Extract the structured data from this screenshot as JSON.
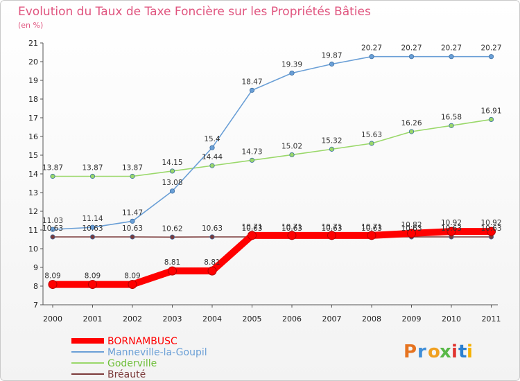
{
  "chart_data": {
    "type": "line",
    "title": "Evolution du Taux de Taxe Foncière sur les Propriétés Bâties",
    "ylabel": "(en %)",
    "xlabel": "",
    "ylim": [
      7,
      21
    ],
    "yticks": [
      "7",
      "8",
      "9",
      "10",
      "11",
      "12",
      "13",
      "14",
      "15",
      "16",
      "17",
      "18",
      "19",
      "20",
      "21"
    ],
    "categories": [
      "2000",
      "2001",
      "2002",
      "2003",
      "2004",
      "2005",
      "2006",
      "2007",
      "2008",
      "2009",
      "2010",
      "2011"
    ],
    "series": [
      {
        "name": "Bréauté",
        "color": "#7b3a3a",
        "values": [
          10.63,
          10.63,
          10.63,
          10.62,
          10.63,
          10.63,
          10.63,
          10.63,
          10.63,
          10.63,
          10.63,
          10.63
        ],
        "labels": [
          "10.63",
          "10.63",
          "10.63",
          "10.62",
          "10.63",
          "10.63",
          "10.63",
          "10.63",
          "10.63",
          "10.63",
          "10.63",
          "10.63"
        ]
      },
      {
        "name": "Goderville",
        "color": "#9ad86a",
        "values": [
          13.87,
          13.87,
          13.87,
          14.15,
          14.44,
          14.73,
          15.02,
          15.32,
          15.63,
          16.26,
          16.58,
          16.91
        ],
        "labels": [
          "13.87",
          "13.87",
          "13.87",
          "14.15",
          "14.44",
          "14.73",
          "15.02",
          "15.32",
          "15.63",
          "16.26",
          "16.58",
          "16.91"
        ]
      },
      {
        "name": "Manneville-la-Goupil",
        "color": "#6a9fd6",
        "values": [
          11.03,
          11.14,
          11.47,
          13.08,
          15.4,
          18.47,
          19.39,
          19.87,
          20.27,
          20.27,
          20.27,
          20.27
        ],
        "labels": [
          "11.03",
          "11.14",
          "11.47",
          "13.08",
          "15.4",
          "18.47",
          "19.39",
          "19.87",
          "20.27",
          "20.27",
          "20.27",
          "20.27"
        ]
      },
      {
        "name": "BORNAMBUSC",
        "color": "#ff0000",
        "values": [
          8.09,
          8.09,
          8.09,
          8.81,
          8.81,
          10.71,
          10.71,
          10.71,
          10.71,
          10.82,
          10.92,
          10.92
        ],
        "labels": [
          "8.09",
          "8.09",
          "8.09",
          "8.81",
          "8.81",
          "10.71",
          "10.71",
          "10.71",
          "10.71",
          "10.82",
          "10.92",
          "10.92"
        ]
      }
    ],
    "legend": [
      "BORNAMBUSC",
      "Manneville-la-Goupil",
      "Goderville",
      "Bréauté"
    ],
    "legend_position": "bottom-left",
    "grid": false
  },
  "logo": {
    "text": "Proxiti"
  }
}
